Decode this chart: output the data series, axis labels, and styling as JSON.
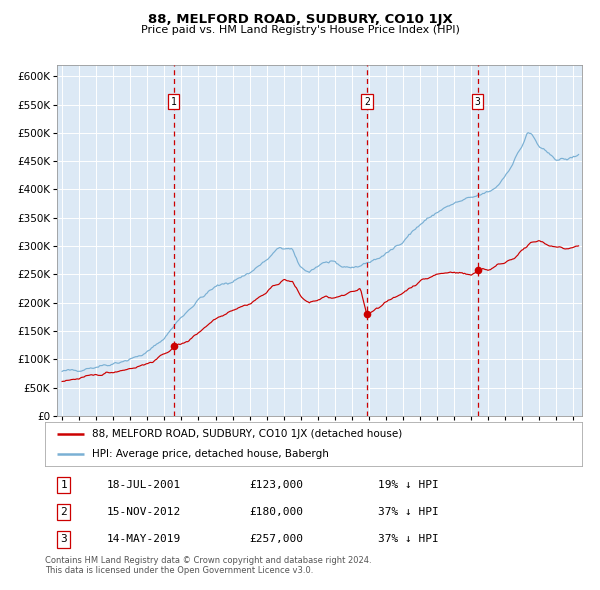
{
  "title": "88, MELFORD ROAD, SUDBURY, CO10 1JX",
  "subtitle": "Price paid vs. HM Land Registry's House Price Index (HPI)",
  "ylim": [
    0,
    620000
  ],
  "yticks": [
    0,
    50000,
    100000,
    150000,
    200000,
    250000,
    300000,
    350000,
    400000,
    450000,
    500000,
    550000,
    600000
  ],
  "xlim_start": 1994.7,
  "xlim_end": 2025.5,
  "background_color": "#dce9f5",
  "grid_color": "#ffffff",
  "sale_color": "#cc0000",
  "hpi_color": "#7ab0d4",
  "vline_color": "#cc0000",
  "sales": [
    {
      "date_year": 2001.54,
      "price": 123000,
      "label": "1"
    },
    {
      "date_year": 2012.88,
      "price": 180000,
      "label": "2"
    },
    {
      "date_year": 2019.37,
      "price": 257000,
      "label": "3"
    }
  ],
  "legend_sale_label": "88, MELFORD ROAD, SUDBURY, CO10 1JX (detached house)",
  "legend_hpi_label": "HPI: Average price, detached house, Babergh",
  "table_entries": [
    {
      "num": "1",
      "date": "18-JUL-2001",
      "price": "£123,000",
      "info": "19% ↓ HPI"
    },
    {
      "num": "2",
      "date": "15-NOV-2012",
      "price": "£180,000",
      "info": "37% ↓ HPI"
    },
    {
      "num": "3",
      "date": "14-MAY-2019",
      "price": "£257,000",
      "info": "37% ↓ HPI"
    }
  ],
  "footer": "Contains HM Land Registry data © Crown copyright and database right 2024.\nThis data is licensed under the Open Government Licence v3.0."
}
